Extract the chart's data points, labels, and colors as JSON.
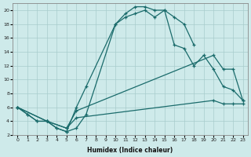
{
  "xlabel": "Humidex (Indice chaleur)",
  "background_color": "#ceeaea",
  "grid_color": "#a8cccc",
  "line_color": "#1a6b6b",
  "xlim": [
    -0.5,
    23.5
  ],
  "ylim": [
    2,
    21
  ],
  "xticks": [
    0,
    1,
    2,
    3,
    4,
    5,
    6,
    7,
    8,
    9,
    10,
    11,
    12,
    13,
    14,
    15,
    16,
    17,
    18,
    19,
    20,
    21,
    22,
    23
  ],
  "yticks": [
    2,
    4,
    6,
    8,
    10,
    12,
    14,
    16,
    18,
    20
  ],
  "line1_x": [
    0,
    1,
    2,
    3,
    4,
    5,
    6,
    7,
    10,
    11,
    12,
    13,
    14,
    15,
    16,
    17,
    18
  ],
  "line1_y": [
    6,
    5,
    4,
    4,
    3,
    2.5,
    3,
    5,
    18,
    19.5,
    20.5,
    20.5,
    20,
    20,
    19,
    18,
    15
  ],
  "line2_x": [
    0,
    1,
    2,
    3,
    4,
    5,
    6,
    7,
    10,
    11,
    12,
    13,
    14,
    15,
    16,
    17,
    18,
    19,
    20,
    21,
    22,
    23
  ],
  "line2_y": [
    6,
    5,
    4,
    4,
    3,
    2.5,
    6,
    9,
    18,
    19,
    19.5,
    20,
    19,
    20,
    15,
    14.5,
    12,
    13.5,
    11.5,
    9,
    8.5,
    7
  ],
  "line3_x": [
    0,
    3,
    5,
    6,
    20,
    21,
    22,
    23
  ],
  "line3_y": [
    6,
    4,
    3,
    5.5,
    13.5,
    11.5,
    11.5,
    7
  ],
  "line4_x": [
    0,
    3,
    5,
    6,
    20,
    21,
    22,
    23
  ],
  "line4_y": [
    6,
    4,
    3,
    4.5,
    7,
    6.5,
    6.5,
    6.5
  ]
}
